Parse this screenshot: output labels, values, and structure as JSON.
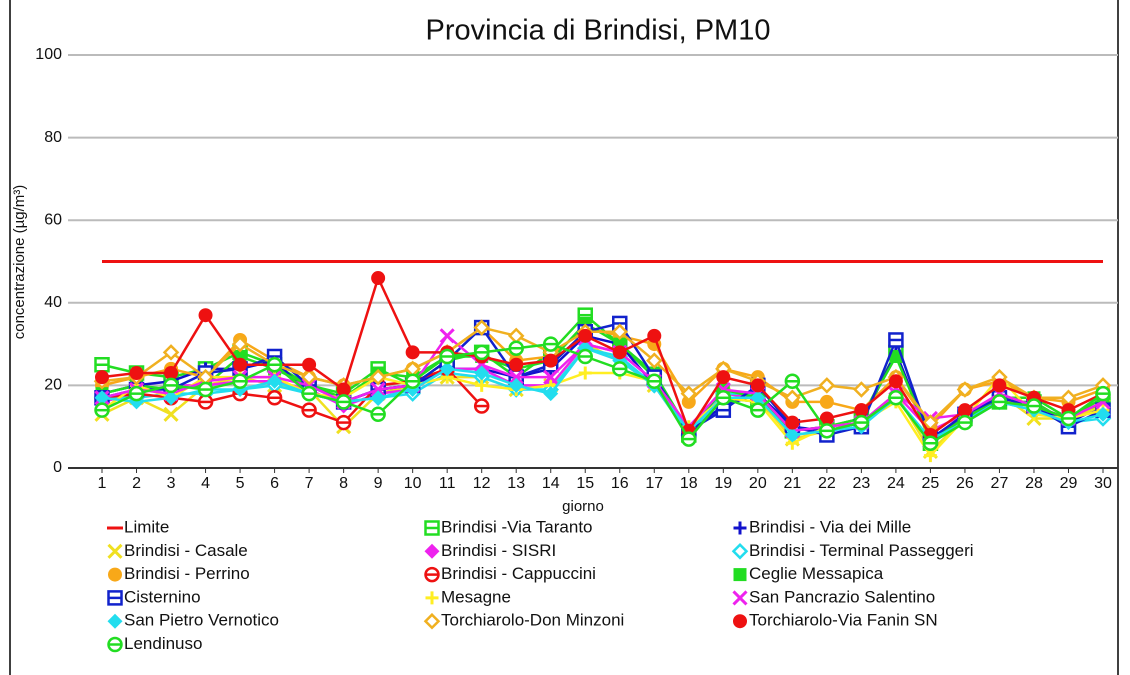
{
  "chart_data": {
    "type": "line",
    "title": "Provincia di Brindisi, PM10",
    "x_label": "giorno",
    "y_label": "concentrazione (µg/m³)",
    "categories": [
      "1",
      "2",
      "3",
      "4",
      "5",
      "6",
      "7",
      "8",
      "9",
      "10",
      "11",
      "12",
      "13",
      "14",
      "15",
      "16",
      "17",
      "18",
      "19",
      "20",
      "21",
      "22",
      "23",
      "24",
      "25",
      "26",
      "27",
      "28",
      "29",
      "30"
    ],
    "ylim": [
      0,
      100
    ],
    "yticks": [
      0,
      20,
      40,
      60,
      80,
      100
    ],
    "grid": true,
    "series": [
      {
        "name": "Limite",
        "color": "#ee1111",
        "marker": "none",
        "values": [
          50,
          50,
          50,
          50,
          50,
          50,
          50,
          50,
          50,
          50,
          50,
          50,
          50,
          50,
          50,
          50,
          50,
          50,
          50,
          50,
          50,
          50,
          50,
          50,
          50,
          50,
          50,
          50,
          50,
          50
        ]
      },
      {
        "name": "Brindisi -Via Taranto",
        "color": "#22dd22",
        "marker": "square-bar",
        "values": [
          25,
          23,
          22,
          24,
          28,
          25,
          20,
          18,
          24,
          20,
          26,
          28,
          22,
          28,
          37,
          30,
          22,
          8,
          17,
          16,
          9,
          10,
          12,
          28,
          6,
          12,
          16,
          16,
          11,
          16
        ]
      },
      {
        "name": "Brindisi - Via dei Mille",
        "color": "#1111cc",
        "marker": "plus",
        "values": [
          18,
          20,
          21,
          24,
          24,
          26,
          18,
          16,
          19,
          20,
          24,
          24,
          22,
          24,
          32,
          30,
          20,
          9,
          15,
          18,
          10,
          9,
          11,
          28,
          7,
          12,
          17,
          15,
          11,
          15
        ]
      },
      {
        "name": "Brindisi - Casale",
        "color": "#f0e020",
        "marker": "x",
        "values": [
          13,
          17,
          13,
          20,
          22,
          20,
          19,
          10,
          18,
          20,
          22,
          22,
          19,
          20,
          30,
          26,
          20,
          8,
          18,
          17,
          7,
          9,
          11,
          18,
          4,
          12,
          18,
          12,
          12,
          15
        ]
      },
      {
        "name": "Brindisi - SISRI",
        "color": "#ee22ee",
        "marker": "diamond",
        "values": [
          16,
          18,
          20,
          20,
          21,
          21,
          19,
          15,
          18,
          19,
          24,
          24,
          20,
          20,
          30,
          28,
          21,
          9,
          18,
          17,
          9,
          10,
          11,
          18,
          9,
          13,
          16,
          15,
          12,
          14
        ]
      },
      {
        "name": " Brindisi - Terminal Passeggeri",
        "color": "#22ddee",
        "marker": "diamond-open",
        "values": [
          17,
          17,
          18,
          18,
          19,
          20,
          18,
          16,
          17,
          18,
          23,
          22,
          19,
          19,
          29,
          27,
          20,
          8,
          18,
          18,
          8,
          9,
          11,
          17,
          7,
          12,
          16,
          14,
          11,
          12
        ]
      },
      {
        "name": "Brindisi - Perrino",
        "color": "#f8a818",
        "marker": "circle",
        "values": [
          20,
          22,
          24,
          22,
          31,
          26,
          22,
          20,
          22,
          24,
          28,
          34,
          26,
          27,
          34,
          32,
          30,
          16,
          24,
          22,
          16,
          16,
          14,
          22,
          10,
          19,
          21,
          17,
          16,
          19
        ]
      },
      {
        "name": "Brindisi - Cappuccini",
        "color": "#ee1111",
        "marker": "circle-bar",
        "values": [
          17,
          18,
          17,
          16,
          18,
          17,
          14,
          11,
          20,
          21,
          24,
          15,
          null,
          null,
          null,
          null,
          null,
          null,
          null,
          null,
          null,
          null,
          null,
          null,
          null,
          null,
          null,
          null,
          null,
          null
        ]
      },
      {
        "name": "Ceglie Messapica",
        "color": "#22dd22",
        "marker": "square",
        "values": [
          18,
          20,
          19,
          20,
          27,
          24,
          20,
          17,
          23,
          22,
          27,
          27,
          24,
          26,
          35,
          30,
          23,
          9,
          19,
          17,
          9,
          10,
          12,
          27,
          7,
          12,
          17,
          17,
          12,
          17
        ]
      },
      {
        "name": "Cisternino",
        "color": "#1122cc",
        "marker": "square-bar",
        "values": [
          17,
          19,
          19,
          23,
          24,
          27,
          20,
          16,
          19,
          20,
          26,
          34,
          22,
          25,
          33,
          35,
          22,
          9,
          14,
          20,
          10,
          8,
          10,
          31,
          7,
          13,
          17,
          15,
          10,
          14
        ]
      },
      {
        "name": "Mesagne",
        "color": "#ffee22",
        "marker": "plus",
        "values": [
          14,
          20,
          17,
          22,
          22,
          22,
          18,
          17,
          22,
          20,
          22,
          20,
          19,
          20,
          23,
          23,
          21,
          10,
          17,
          16,
          6,
          10,
          11,
          16,
          3,
          12,
          22,
          13,
          12,
          14
        ]
      },
      {
        "name": "San Pancrazio Salentino",
        "color": "#ee22ee",
        "marker": "x",
        "values": [
          17,
          19,
          18,
          21,
          22,
          22,
          20,
          16,
          19,
          20,
          32,
          25,
          22,
          22,
          30,
          28,
          21,
          10,
          19,
          18,
          9,
          10,
          11,
          18,
          12,
          13,
          18,
          15,
          12,
          16
        ]
      },
      {
        "name": "San Pietro Vernotico",
        "color": "#22ddee",
        "marker": "diamond",
        "values": [
          17,
          16,
          17,
          19,
          19,
          21,
          18,
          16,
          17,
          19,
          24,
          23,
          20,
          18,
          29,
          26,
          20,
          9,
          17,
          17,
          8,
          9,
          10,
          17,
          7,
          11,
          16,
          14,
          11,
          13
        ]
      },
      {
        "name": "Torchiarolo-Don Minzoni",
        "color": "#f0b020",
        "marker": "diamond-open",
        "values": [
          21,
          22,
          28,
          22,
          30,
          25,
          22,
          20,
          22,
          24,
          28,
          34,
          32,
          28,
          33,
          33,
          26,
          18,
          24,
          21,
          17,
          20,
          19,
          22,
          11,
          19,
          22,
          17,
          17,
          20
        ]
      },
      {
        "name": "Torchiarolo-Via Fanin SN",
        "color": "#ee1111",
        "marker": "circle",
        "values": [
          22,
          23,
          23,
          37,
          25,
          25,
          25,
          19,
          46,
          28,
          28,
          27,
          25,
          26,
          32,
          28,
          32,
          9,
          22,
          20,
          11,
          12,
          14,
          21,
          8,
          14,
          20,
          17,
          14,
          18
        ]
      },
      {
        "name": "Lendinuso",
        "color": "#22dd22",
        "marker": "circle-bar",
        "values": [
          14,
          18,
          20,
          19,
          21,
          25,
          18,
          16,
          13,
          21,
          27,
          28,
          29,
          30,
          27,
          24,
          21,
          7,
          17,
          14,
          21,
          9,
          11,
          17,
          6,
          11,
          16,
          15,
          12,
          18
        ]
      }
    ]
  }
}
